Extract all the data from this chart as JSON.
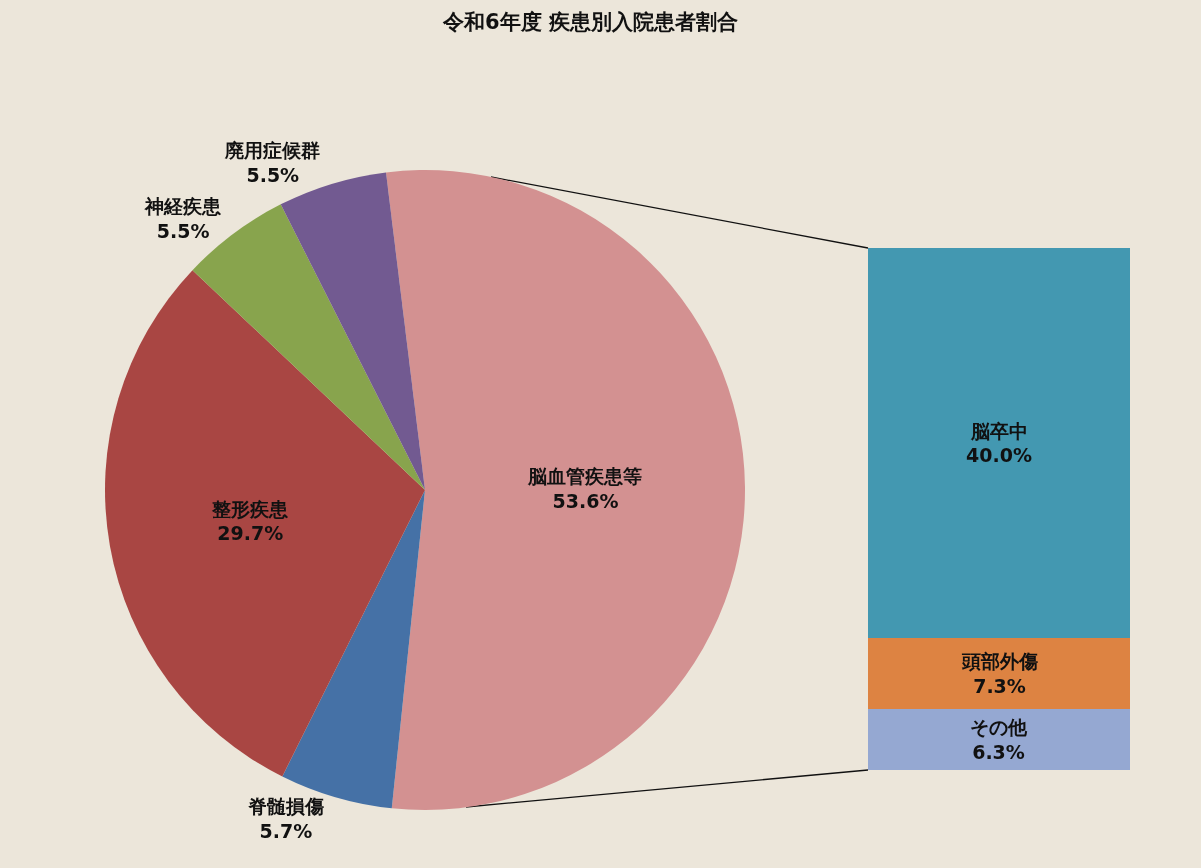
{
  "chart_data": [
    {
      "type": "pie",
      "title": "令和6年度  疾患別入院患者割合",
      "categories": [
        "脳血管疾患等",
        "脊髄損傷",
        "整形疾患",
        "神経疾患",
        "廃用症候群"
      ],
      "values": [
        53.6,
        5.7,
        29.7,
        5.5,
        5.5
      ],
      "colors": [
        "#d39191",
        "#4571a6",
        "#a94643",
        "#88a44d",
        "#725a91"
      ],
      "value_labels": [
        "53.6%",
        "5.7%",
        "29.7%",
        "5.5%",
        "5.5%"
      ],
      "legend": false
    },
    {
      "type": "bar",
      "stacked": true,
      "categories": [
        null
      ],
      "series": [
        {
          "name": "その他",
          "color": "#95a8d2",
          "values": [
            6.3
          ],
          "value_labels": [
            "6.3%"
          ]
        },
        {
          "name": "頭部外傷",
          "color": "#dd8342",
          "values": [
            7.3
          ],
          "value_labels": [
            "7.3%"
          ]
        },
        {
          "name": "脳卒中",
          "color": "#4398b1",
          "values": [
            40.0
          ],
          "value_labels": [
            "40.0%"
          ]
        }
      ],
      "ylim": [
        0,
        53.6
      ],
      "tick_labels": false,
      "legend": false
    }
  ]
}
